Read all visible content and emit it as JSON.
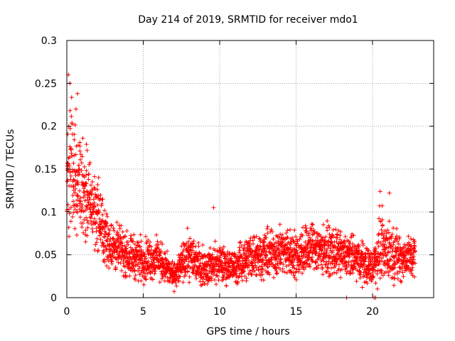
{
  "chart_data": {
    "type": "scatter",
    "title": "Day 214 of 2019, SRMTID for receiver mdo1",
    "xlabel": "GPS time / hours",
    "ylabel": "SRMTID / TECUs",
    "xlim": [
      0,
      24
    ],
    "ylim": [
      0,
      0.3
    ],
    "x_ticks": [
      "0",
      "5",
      "10",
      "15",
      "20"
    ],
    "y_ticks": [
      "0",
      "0.05",
      "0.1",
      "0.15",
      "0.2",
      "0.25",
      "0.3"
    ],
    "grid": true,
    "marker": "+",
    "series": [
      {
        "name": "SRMTID",
        "color": "#ff0000",
        "approx_envelope": {
          "x": [
            0,
            0.25,
            0.5,
            1,
            1.5,
            2,
            2.5,
            3,
            4,
            5,
            6,
            7,
            8,
            9,
            10,
            11,
            12,
            13,
            14,
            15,
            16,
            17,
            18,
            19,
            20,
            20.5,
            21,
            22,
            22.8
          ],
          "y_mean": [
            0.13,
            0.16,
            0.14,
            0.13,
            0.11,
            0.1,
            0.07,
            0.06,
            0.05,
            0.045,
            0.045,
            0.025,
            0.05,
            0.035,
            0.04,
            0.035,
            0.05,
            0.05,
            0.055,
            0.05,
            0.06,
            0.055,
            0.05,
            0.045,
            0.035,
            0.06,
            0.055,
            0.045,
            0.05
          ],
          "y_spread": [
            0.05,
            0.06,
            0.04,
            0.04,
            0.035,
            0.03,
            0.025,
            0.02,
            0.018,
            0.018,
            0.017,
            0.01,
            0.02,
            0.015,
            0.016,
            0.014,
            0.02,
            0.02,
            0.02,
            0.02,
            0.022,
            0.02,
            0.018,
            0.018,
            0.015,
            0.03,
            0.025,
            0.018,
            0.02
          ]
        },
        "n_points": 2700,
        "notable_points": [
          {
            "x": 0.1,
            "y": 0.26
          },
          {
            "x": 0.2,
            "y": 0.25
          },
          {
            "x": 0.7,
            "y": 0.238
          },
          {
            "x": 0.6,
            "y": 0.22
          },
          {
            "x": 9.6,
            "y": 0.105
          },
          {
            "x": 20.5,
            "y": 0.124
          },
          {
            "x": 21.1,
            "y": 0.122
          },
          {
            "x": 18.3,
            "y": 0.0
          },
          {
            "x": 20.1,
            "y": 0.0
          },
          {
            "x": 20.2,
            "y": 0.0
          }
        ]
      }
    ]
  }
}
